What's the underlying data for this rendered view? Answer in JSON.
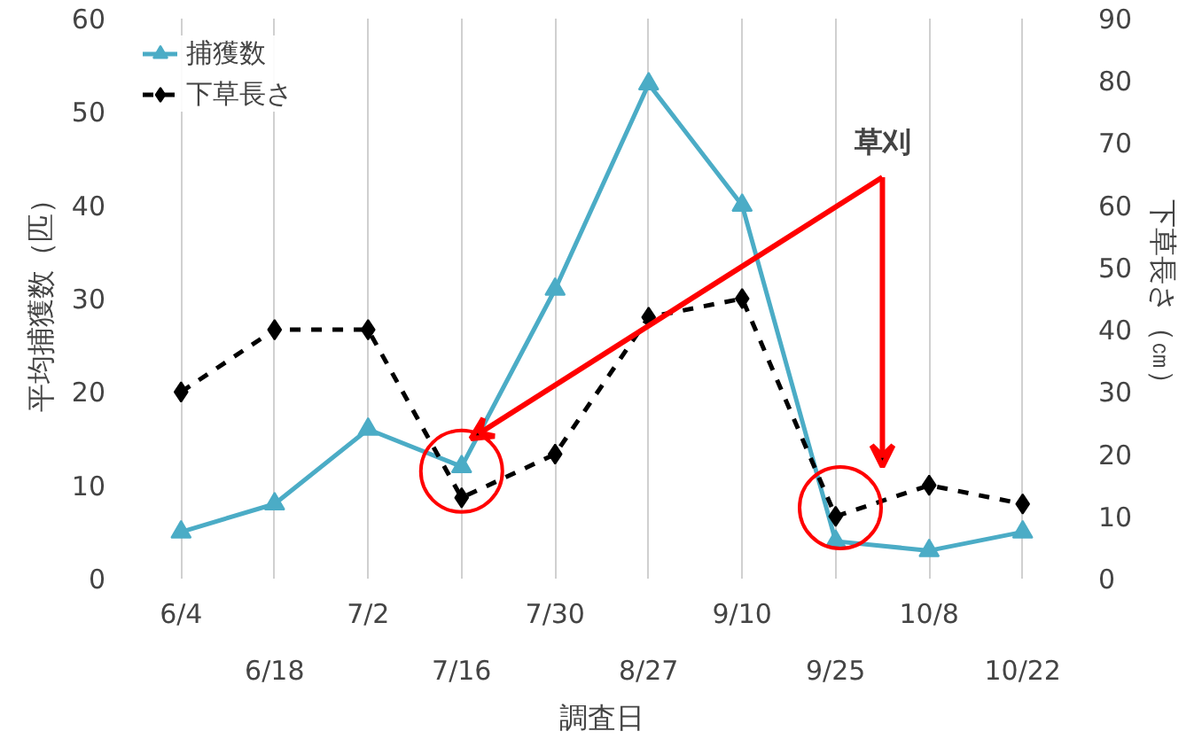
{
  "chart_data": {
    "type": "line",
    "categories": [
      "6/4",
      "6/18",
      "7/2",
      "7/16",
      "7/30",
      "8/27",
      "9/10",
      "9/25",
      "10/8",
      "10/22"
    ],
    "series": [
      {
        "name": "捕獲数",
        "color": "#4bacc6",
        "values": [
          5,
          8,
          16,
          12,
          31,
          53,
          40,
          4,
          3,
          5
        ],
        "marker": "triangle",
        "line_style": "solid"
      },
      {
        "name": "下草長さ",
        "color": "#000000",
        "values": [
          30,
          40,
          40,
          13,
          20,
          42,
          45,
          10,
          15,
          12
        ],
        "marker": "diamond",
        "line_style": "dashed",
        "axis": "y2"
      }
    ],
    "xlabel": "調査日",
    "ylabel": "平均捕獲数（匹）",
    "y2label": "下草長さ（㎝）",
    "ylim": [
      0,
      60
    ],
    "yticks": [
      0,
      10,
      20,
      30,
      40,
      50,
      60
    ],
    "y2lim": [
      0,
      90
    ],
    "y2ticks": [
      0,
      10,
      20,
      30,
      40,
      50,
      60,
      70,
      80,
      90
    ],
    "grid": "x",
    "legend": "top left",
    "annotations": [
      "草刈"
    ]
  }
}
